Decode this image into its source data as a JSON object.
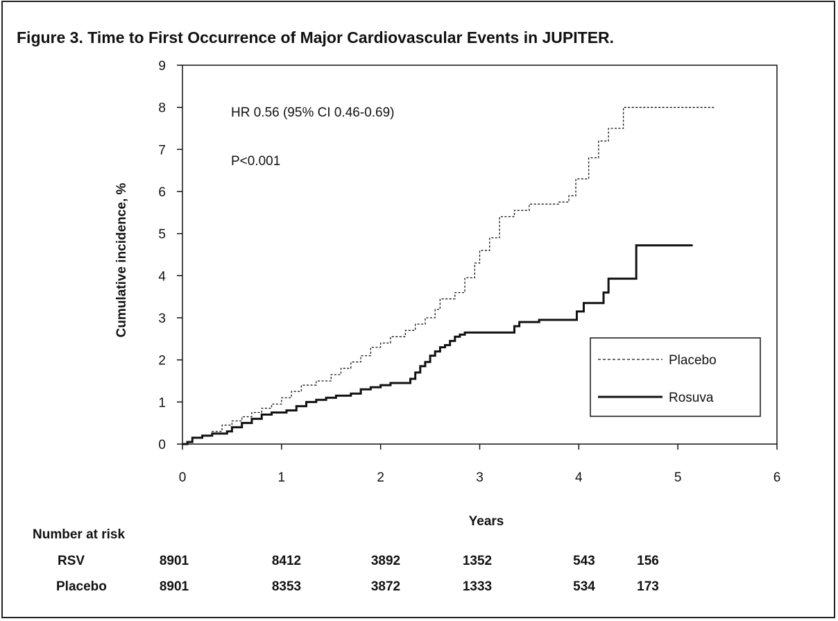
{
  "figure_title": "Figure 3. Time to First Occurrence of Major Cardiovascular Events in JUPITER.",
  "chart_data": {
    "type": "line",
    "title": "Figure 3. Time to First Occurrence of Major Cardiovascular Events in JUPITER.",
    "xlabel": "Years",
    "ylabel": "Cumulative incidence, %",
    "xlim": [
      0,
      6
    ],
    "ylim": [
      0,
      9
    ],
    "xticks": [
      "0",
      "1",
      "2",
      "3",
      "4",
      "5",
      "6"
    ],
    "yticks": [
      "0",
      "1",
      "2",
      "3",
      "4",
      "5",
      "6",
      "7",
      "8",
      "9"
    ],
    "grid": false,
    "legend_position": "right",
    "annotations": [
      "HR 0.56 (95% CI 0.46-0.69)",
      "P<0.001"
    ],
    "series": [
      {
        "name": "Placebo",
        "style": "dashed",
        "step": true,
        "x": [
          0,
          0.05,
          0.1,
          0.2,
          0.3,
          0.4,
          0.5,
          0.6,
          0.7,
          0.8,
          0.9,
          1.0,
          1.1,
          1.2,
          1.35,
          1.5,
          1.6,
          1.7,
          1.8,
          1.9,
          2.0,
          2.1,
          2.25,
          2.35,
          2.45,
          2.55,
          2.6,
          2.75,
          2.85,
          2.95,
          3.0,
          3.1,
          3.2,
          3.35,
          3.5,
          3.8,
          3.9,
          3.97,
          4.1,
          4.2,
          4.3,
          4.45,
          5.38
        ],
        "y": [
          0,
          0.05,
          0.15,
          0.2,
          0.3,
          0.45,
          0.55,
          0.65,
          0.75,
          0.85,
          0.95,
          1.1,
          1.25,
          1.4,
          1.5,
          1.65,
          1.8,
          1.95,
          2.1,
          2.3,
          2.4,
          2.55,
          2.7,
          2.85,
          3.0,
          3.2,
          3.45,
          3.6,
          3.95,
          4.3,
          4.6,
          4.9,
          5.4,
          5.55,
          5.7,
          5.75,
          5.9,
          6.3,
          6.8,
          7.2,
          7.5,
          8.0,
          8.0
        ]
      },
      {
        "name": "Rosuva",
        "style": "solid",
        "step": true,
        "x": [
          0,
          0.05,
          0.1,
          0.2,
          0.3,
          0.45,
          0.5,
          0.6,
          0.7,
          0.8,
          0.9,
          1.05,
          1.15,
          1.25,
          1.35,
          1.45,
          1.55,
          1.7,
          1.8,
          1.9,
          2.0,
          2.1,
          2.3,
          2.35,
          2.4,
          2.45,
          2.5,
          2.55,
          2.6,
          2.65,
          2.7,
          2.75,
          2.8,
          2.85,
          3.35,
          3.4,
          3.6,
          3.98,
          4.05,
          4.25,
          4.3,
          4.58,
          5.15
        ],
        "y": [
          0,
          0.05,
          0.15,
          0.2,
          0.25,
          0.3,
          0.4,
          0.5,
          0.6,
          0.7,
          0.75,
          0.8,
          0.9,
          1.0,
          1.05,
          1.1,
          1.15,
          1.2,
          1.3,
          1.35,
          1.4,
          1.45,
          1.55,
          1.7,
          1.85,
          1.95,
          2.1,
          2.2,
          2.3,
          2.35,
          2.45,
          2.55,
          2.6,
          2.65,
          2.8,
          2.9,
          2.95,
          3.15,
          3.35,
          3.6,
          3.93,
          4.72,
          4.72
        ]
      }
    ],
    "number_at_risk": {
      "label": "Number at risk",
      "rows": [
        {
          "name": "RSV",
          "values": [
            "8901",
            "8412",
            "3892",
            "1352",
            "543",
            "156"
          ]
        },
        {
          "name": "Placebo",
          "values": [
            "8901",
            "8353",
            "3872",
            "1333",
            "534",
            "173"
          ]
        }
      ]
    }
  }
}
